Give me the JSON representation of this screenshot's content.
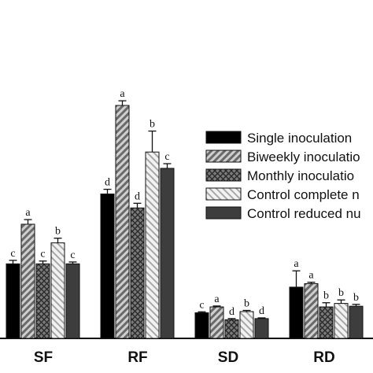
{
  "chart_data": {
    "type": "bar",
    "title": "",
    "xlabel": "",
    "ylabel": "",
    "categories": [
      "SF",
      "RF",
      "SD",
      "RD"
    ],
    "series": [
      {
        "name": "Single inoculation",
        "values": [
          3.2,
          6.2,
          1.1,
          2.2
        ],
        "errors": [
          0.15,
          0.2,
          0.04,
          0.7
        ],
        "letters": [
          "c",
          "d",
          "c",
          "a"
        ],
        "color": "#000000",
        "pattern": "solid"
      },
      {
        "name": "Biweekly inoculation",
        "values": [
          4.9,
          10.0,
          1.35,
          2.35
        ],
        "errors": [
          0.2,
          0.2,
          0.04,
          0.06
        ],
        "letters": [
          "a",
          "a",
          "a",
          "a"
        ],
        "color": "#999999",
        "pattern": "diagonal-stripes"
      },
      {
        "name": "Monthly inoculation",
        "values": [
          3.2,
          5.6,
          0.8,
          1.35
        ],
        "errors": [
          0.12,
          0.2,
          0.05,
          0.18
        ],
        "letters": [
          "c",
          "d",
          "d",
          "b"
        ],
        "color": "#555555",
        "pattern": "crosshatch"
      },
      {
        "name": "Control complete nutrients",
        "values": [
          4.1,
          8.0,
          1.15,
          1.5
        ],
        "errors": [
          0.2,
          0.9,
          0.05,
          0.15
        ],
        "letters": [
          "b",
          "b",
          "b",
          "b"
        ],
        "color": "#cccccc",
        "pattern": "light-diagonal-stripes"
      },
      {
        "name": "Control reduced nutrients",
        "values": [
          3.2,
          7.3,
          0.85,
          1.38
        ],
        "errors": [
          0.08,
          0.2,
          0.03,
          0.08
        ],
        "letters": [
          "c",
          "c",
          "d",
          "b"
        ],
        "color": "#444444",
        "pattern": "solid"
      }
    ],
    "legend": {
      "placement": "right",
      "entries": [
        "Single inoculation",
        "Biweekly inoculatio",
        "Monthly inoculatio",
        "Control complete n",
        "Control reduced nu"
      ]
    },
    "grid": false
  }
}
